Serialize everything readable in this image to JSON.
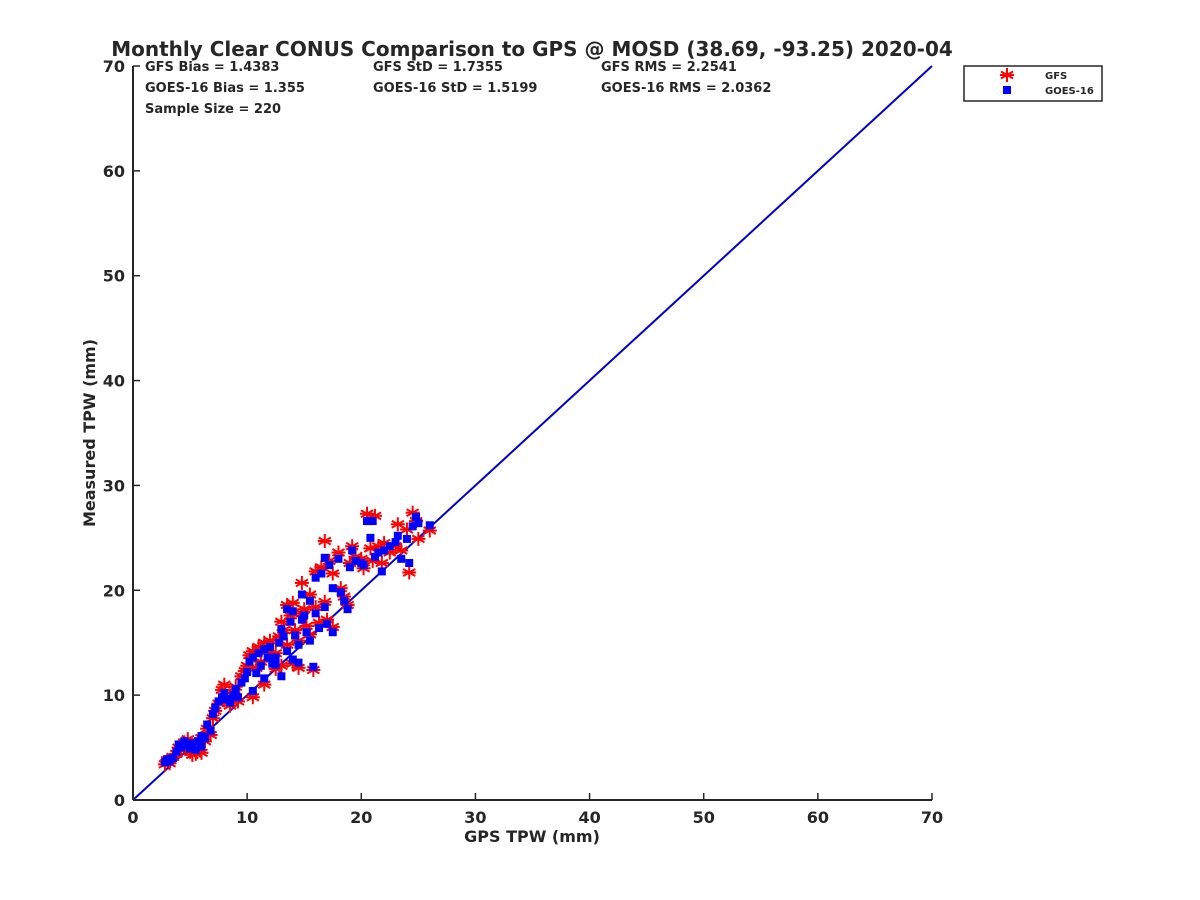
{
  "chart_data": {
    "type": "scatter",
    "title": "Monthly Clear CONUS Comparison to GPS @ MOSD (38.69, -93.25) 2020-04",
    "xlabel": "GPS TPW (mm)",
    "ylabel": "Measured TPW (mm)",
    "xlim": [
      0,
      70
    ],
    "ylim": [
      0,
      70
    ],
    "xticks": [
      "0",
      "10",
      "20",
      "30",
      "40",
      "50",
      "60",
      "70"
    ],
    "yticks": [
      "0",
      "10",
      "20",
      "30",
      "40",
      "50",
      "60",
      "70"
    ],
    "grid": false,
    "legend": "top-right outside",
    "stats": [
      "GFS Bias = 1.4383",
      "GFS StD = 1.7355",
      "GFS RMS = 2.2541",
      "GOES-16 Bias = 1.355",
      "GOES-16 StD = 1.5199",
      "GOES-16 RMS = 2.0362",
      "Sample Size = 220"
    ],
    "reference_line": {
      "x": [
        0,
        70
      ],
      "y": [
        0,
        70
      ],
      "color": "#0000cc"
    },
    "series": [
      {
        "name": "GFS",
        "marker": "asterisk",
        "color": "#ff0000",
        "points": [
          [
            2.8,
            3.4
          ],
          [
            3.0,
            3.8
          ],
          [
            3.2,
            3.5
          ],
          [
            3.5,
            4.1
          ],
          [
            3.8,
            4.4
          ],
          [
            4.0,
            5.0
          ],
          [
            4.2,
            4.8
          ],
          [
            4.5,
            5.5
          ],
          [
            4.8,
            5.8
          ],
          [
            5.0,
            4.6
          ],
          [
            5.2,
            4.3
          ],
          [
            5.5,
            4.4
          ],
          [
            5.7,
            5.0
          ],
          [
            6.0,
            4.5
          ],
          [
            6.0,
            5.9
          ],
          [
            6.3,
            5.6
          ],
          [
            6.5,
            6.8
          ],
          [
            6.8,
            6.2
          ],
          [
            7.0,
            7.8
          ],
          [
            7.2,
            8.5
          ],
          [
            7.5,
            9.2
          ],
          [
            7.8,
            10.5
          ],
          [
            8.0,
            11.0
          ],
          [
            8.2,
            9.8
          ],
          [
            8.5,
            9.0
          ],
          [
            8.8,
            10.2
          ],
          [
            9.0,
            10.8
          ],
          [
            9.2,
            9.4
          ],
          [
            9.5,
            11.8
          ],
          [
            9.8,
            12.3
          ],
          [
            10.0,
            12.8
          ],
          [
            10.2,
            13.8
          ],
          [
            10.5,
            14.2
          ],
          [
            10.5,
            9.8
          ],
          [
            10.8,
            12.6
          ],
          [
            11.0,
            14.6
          ],
          [
            11.2,
            13.2
          ],
          [
            11.5,
            15.0
          ],
          [
            11.5,
            11.0
          ],
          [
            11.8,
            14.2
          ],
          [
            12.0,
            15.2
          ],
          [
            12.2,
            13.5
          ],
          [
            12.5,
            14.0
          ],
          [
            12.5,
            12.5
          ],
          [
            12.8,
            15.6
          ],
          [
            13.0,
            17.0
          ],
          [
            13.0,
            12.8
          ],
          [
            13.2,
            16.2
          ],
          [
            13.5,
            18.6
          ],
          [
            13.5,
            14.8
          ],
          [
            13.8,
            17.6
          ],
          [
            14.0,
            18.8
          ],
          [
            14.0,
            13.0
          ],
          [
            14.2,
            16.2
          ],
          [
            14.5,
            15.2
          ],
          [
            14.5,
            12.6
          ],
          [
            14.8,
            17.8
          ],
          [
            14.8,
            20.7
          ],
          [
            15.0,
            18.2
          ],
          [
            15.2,
            16.6
          ],
          [
            15.5,
            19.6
          ],
          [
            15.5,
            15.8
          ],
          [
            15.8,
            12.4
          ],
          [
            16.0,
            21.8
          ],
          [
            16.0,
            18.4
          ],
          [
            16.3,
            16.9
          ],
          [
            16.5,
            22.2
          ],
          [
            16.8,
            24.7
          ],
          [
            16.8,
            18.9
          ],
          [
            17.0,
            17.2
          ],
          [
            17.2,
            22.8
          ],
          [
            17.5,
            16.5
          ],
          [
            17.5,
            21.6
          ],
          [
            18.0,
            23.6
          ],
          [
            18.2,
            20.2
          ],
          [
            18.5,
            19.4
          ],
          [
            18.8,
            18.6
          ],
          [
            19.0,
            22.6
          ],
          [
            19.2,
            24.2
          ],
          [
            19.5,
            23.2
          ],
          [
            20.0,
            23.0
          ],
          [
            20.2,
            22.1
          ],
          [
            20.5,
            27.3
          ],
          [
            20.8,
            24.0
          ],
          [
            21.0,
            22.8
          ],
          [
            21.2,
            27.1
          ],
          [
            21.5,
            24.2
          ],
          [
            21.8,
            22.6
          ],
          [
            22.0,
            24.5
          ],
          [
            22.5,
            23.6
          ],
          [
            23.0,
            24.2
          ],
          [
            23.2,
            26.3
          ],
          [
            23.5,
            23.8
          ],
          [
            24.0,
            25.8
          ],
          [
            24.2,
            21.7
          ],
          [
            24.5,
            27.4
          ],
          [
            24.8,
            26.6
          ],
          [
            25.0,
            24.9
          ],
          [
            26.0,
            25.7
          ]
        ]
      },
      {
        "name": "GOES-16",
        "marker": "square",
        "color": "#0000ff",
        "points": [
          [
            2.8,
            3.6
          ],
          [
            3.0,
            3.9
          ],
          [
            3.2,
            3.7
          ],
          [
            3.5,
            4.0
          ],
          [
            3.8,
            4.6
          ],
          [
            4.0,
            5.3
          ],
          [
            4.2,
            5.0
          ],
          [
            4.5,
            5.6
          ],
          [
            4.8,
            5.2
          ],
          [
            5.0,
            4.9
          ],
          [
            5.2,
            5.4
          ],
          [
            5.5,
            4.8
          ],
          [
            5.7,
            5.6
          ],
          [
            6.0,
            5.1
          ],
          [
            6.0,
            6.1
          ],
          [
            6.3,
            5.9
          ],
          [
            6.5,
            7.2
          ],
          [
            6.8,
            6.6
          ],
          [
            7.0,
            8.2
          ],
          [
            7.2,
            8.8
          ],
          [
            7.5,
            9.4
          ],
          [
            7.8,
            9.8
          ],
          [
            8.0,
            10.2
          ],
          [
            8.2,
            9.6
          ],
          [
            8.5,
            9.3
          ],
          [
            8.8,
            10.0
          ],
          [
            9.0,
            10.6
          ],
          [
            9.2,
            9.8
          ],
          [
            9.5,
            11.2
          ],
          [
            9.8,
            11.6
          ],
          [
            10.0,
            12.2
          ],
          [
            10.2,
            13.2
          ],
          [
            10.5,
            13.6
          ],
          [
            10.5,
            10.4
          ],
          [
            10.8,
            12.1
          ],
          [
            11.0,
            14.0
          ],
          [
            11.2,
            12.8
          ],
          [
            11.5,
            14.4
          ],
          [
            11.5,
            11.6
          ],
          [
            11.8,
            13.6
          ],
          [
            12.0,
            14.6
          ],
          [
            12.2,
            13.0
          ],
          [
            12.5,
            13.6
          ],
          [
            12.5,
            12.9
          ],
          [
            12.8,
            15.0
          ],
          [
            13.0,
            16.3
          ],
          [
            13.0,
            11.8
          ],
          [
            13.2,
            15.6
          ],
          [
            13.5,
            18.2
          ],
          [
            13.5,
            14.2
          ],
          [
            13.8,
            17.0
          ],
          [
            14.0,
            18.0
          ],
          [
            14.0,
            13.4
          ],
          [
            14.2,
            15.7
          ],
          [
            14.5,
            14.8
          ],
          [
            14.5,
            13.1
          ],
          [
            14.8,
            17.2
          ],
          [
            14.8,
            19.6
          ],
          [
            15.0,
            17.6
          ],
          [
            15.2,
            16.0
          ],
          [
            15.5,
            19.0
          ],
          [
            15.5,
            15.2
          ],
          [
            15.8,
            12.7
          ],
          [
            16.0,
            21.2
          ],
          [
            16.0,
            17.8
          ],
          [
            16.3,
            16.4
          ],
          [
            16.5,
            21.6
          ],
          [
            16.8,
            23.1
          ],
          [
            16.8,
            18.4
          ],
          [
            17.0,
            16.8
          ],
          [
            17.2,
            22.4
          ],
          [
            17.5,
            16.0
          ],
          [
            17.5,
            20.2
          ],
          [
            18.0,
            23.0
          ],
          [
            18.2,
            19.8
          ],
          [
            18.5,
            19.0
          ],
          [
            18.8,
            18.2
          ],
          [
            19.0,
            22.2
          ],
          [
            19.2,
            23.8
          ],
          [
            19.5,
            22.8
          ],
          [
            20.0,
            22.6
          ],
          [
            20.2,
            22.4
          ],
          [
            20.5,
            26.6
          ],
          [
            20.8,
            25.0
          ],
          [
            21.0,
            26.6
          ],
          [
            21.2,
            23.2
          ],
          [
            21.5,
            23.6
          ],
          [
            21.8,
            21.8
          ],
          [
            22.0,
            23.8
          ],
          [
            22.5,
            24.2
          ],
          [
            23.0,
            24.6
          ],
          [
            23.2,
            25.2
          ],
          [
            23.5,
            23.0
          ],
          [
            24.0,
            24.9
          ],
          [
            24.2,
            22.6
          ],
          [
            24.5,
            26.1
          ],
          [
            24.8,
            27.0
          ],
          [
            25.0,
            26.4
          ],
          [
            26.0,
            26.2
          ]
        ]
      }
    ]
  }
}
